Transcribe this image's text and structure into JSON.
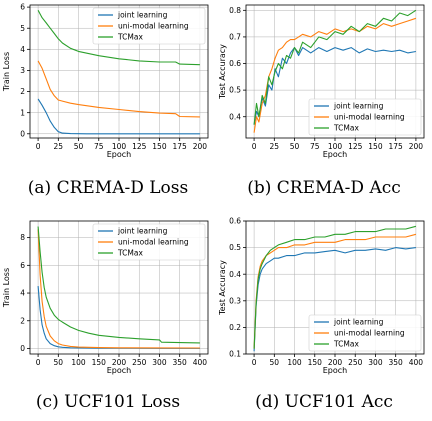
{
  "captions": [
    "(a) CREMA-D Loss",
    "(b) CREMA-D Acc",
    "(c) UCF101 Loss",
    "(d) UCF101 Acc"
  ],
  "colors": {
    "joint": "#1f77b4",
    "unimodal": "#ff7f0e",
    "tcmax": "#2ca02c"
  },
  "chart_data": [
    {
      "type": "line",
      "xlabel": "Epoch",
      "ylabel": "Train Loss",
      "xlim": [
        -10,
        210
      ],
      "ylim": [
        -0.2,
        6.1
      ],
      "xticks": [
        0,
        25,
        50,
        75,
        100,
        125,
        150,
        175,
        200
      ],
      "yticks": [
        0,
        1,
        2,
        3,
        4,
        5,
        6
      ],
      "grid": true,
      "legend_position": "top-right",
      "series": [
        {
          "name": "joint learning",
          "x": [
            0,
            5,
            10,
            15,
            20,
            25,
            30,
            40,
            60,
            100,
            150,
            200
          ],
          "values": [
            1.65,
            1.35,
            1.0,
            0.6,
            0.3,
            0.1,
            0.03,
            0.01,
            0.0,
            0.0,
            0.0,
            0.0
          ]
        },
        {
          "name": "uni-modal learning",
          "x": [
            0,
            5,
            10,
            15,
            20,
            25,
            30,
            40,
            50,
            75,
            100,
            125,
            150,
            170,
            175,
            200
          ],
          "values": [
            3.45,
            3.1,
            2.6,
            2.1,
            1.8,
            1.6,
            1.55,
            1.45,
            1.38,
            1.25,
            1.15,
            1.05,
            0.98,
            0.95,
            0.82,
            0.8
          ]
        },
        {
          "name": "TCMax",
          "x": [
            0,
            5,
            10,
            15,
            20,
            25,
            30,
            40,
            50,
            75,
            100,
            125,
            150,
            170,
            175,
            200
          ],
          "values": [
            5.85,
            5.5,
            5.25,
            5.0,
            4.75,
            4.5,
            4.3,
            4.05,
            3.9,
            3.7,
            3.55,
            3.45,
            3.4,
            3.4,
            3.3,
            3.27
          ]
        }
      ]
    },
    {
      "type": "line",
      "xlabel": "Epoch",
      "ylabel": "Test Accuracy",
      "xlim": [
        -10,
        210
      ],
      "ylim": [
        0.32,
        0.82
      ],
      "xticks": [
        0,
        25,
        50,
        75,
        100,
        125,
        150,
        175,
        200
      ],
      "yticks": [
        0.4,
        0.5,
        0.6,
        0.7,
        0.8
      ],
      "grid": true,
      "legend_position": "bottom-right",
      "series": [
        {
          "name": "joint learning",
          "x": [
            0,
            3,
            6,
            10,
            14,
            18,
            22,
            26,
            30,
            35,
            40,
            45,
            50,
            55,
            60,
            70,
            80,
            90,
            100,
            110,
            120,
            130,
            140,
            150,
            160,
            170,
            180,
            190,
            200
          ],
          "values": [
            0.37,
            0.42,
            0.4,
            0.47,
            0.44,
            0.52,
            0.5,
            0.58,
            0.55,
            0.62,
            0.6,
            0.64,
            0.66,
            0.63,
            0.66,
            0.64,
            0.66,
            0.645,
            0.66,
            0.65,
            0.66,
            0.64,
            0.655,
            0.645,
            0.65,
            0.645,
            0.65,
            0.64,
            0.645
          ]
        },
        {
          "name": "uni-modal learning",
          "x": [
            0,
            3,
            6,
            10,
            14,
            18,
            22,
            26,
            30,
            35,
            40,
            45,
            50,
            55,
            60,
            70,
            80,
            90,
            100,
            110,
            120,
            130,
            140,
            150,
            160,
            170,
            180,
            190,
            200
          ],
          "values": [
            0.34,
            0.4,
            0.38,
            0.45,
            0.48,
            0.55,
            0.58,
            0.62,
            0.65,
            0.66,
            0.68,
            0.69,
            0.69,
            0.7,
            0.71,
            0.7,
            0.72,
            0.71,
            0.73,
            0.72,
            0.73,
            0.72,
            0.74,
            0.73,
            0.75,
            0.74,
            0.75,
            0.76,
            0.77
          ]
        },
        {
          "name": "TCMax",
          "x": [
            0,
            3,
            6,
            10,
            14,
            18,
            22,
            26,
            30,
            35,
            40,
            45,
            50,
            55,
            60,
            70,
            80,
            90,
            100,
            110,
            120,
            130,
            140,
            150,
            160,
            170,
            180,
            190,
            200
          ],
          "values": [
            0.37,
            0.45,
            0.4,
            0.48,
            0.45,
            0.55,
            0.52,
            0.57,
            0.6,
            0.58,
            0.63,
            0.62,
            0.66,
            0.64,
            0.68,
            0.66,
            0.7,
            0.69,
            0.72,
            0.71,
            0.74,
            0.72,
            0.75,
            0.74,
            0.77,
            0.76,
            0.79,
            0.78,
            0.8
          ]
        }
      ]
    },
    {
      "type": "line",
      "xlabel": "Epoch",
      "ylabel": "Train Loss",
      "xlim": [
        -20,
        420
      ],
      "ylim": [
        -0.4,
        9.2
      ],
      "xticks": [
        0,
        50,
        100,
        150,
        200,
        250,
        300,
        350,
        400
      ],
      "yticks": [
        0,
        2,
        4,
        6,
        8
      ],
      "grid": true,
      "legend_position": "top-right",
      "series": [
        {
          "name": "joint learning",
          "x": [
            0,
            5,
            10,
            15,
            20,
            30,
            40,
            50,
            60,
            80,
            100,
            150,
            200,
            300,
            400
          ],
          "values": [
            4.5,
            2.8,
            1.7,
            1.1,
            0.7,
            0.35,
            0.2,
            0.12,
            0.08,
            0.05,
            0.03,
            0.02,
            0.02,
            0.01,
            0.01
          ]
        },
        {
          "name": "uni-modal learning",
          "x": [
            0,
            5,
            10,
            15,
            20,
            30,
            40,
            50,
            60,
            80,
            100,
            150,
            200,
            300,
            400
          ],
          "values": [
            8.6,
            5.3,
            3.4,
            2.3,
            1.6,
            0.9,
            0.55,
            0.35,
            0.25,
            0.15,
            0.1,
            0.06,
            0.05,
            0.04,
            0.03
          ]
        },
        {
          "name": "TCMax",
          "x": [
            0,
            5,
            10,
            15,
            20,
            30,
            40,
            50,
            60,
            80,
            100,
            125,
            150,
            200,
            250,
            300,
            305,
            350,
            400
          ],
          "values": [
            8.8,
            7.0,
            5.5,
            4.4,
            3.7,
            2.9,
            2.4,
            2.1,
            1.9,
            1.55,
            1.3,
            1.1,
            0.95,
            0.8,
            0.7,
            0.62,
            0.45,
            0.42,
            0.4
          ]
        }
      ]
    },
    {
      "type": "line",
      "xlabel": "Epoch",
      "ylabel": "Test Accuracy",
      "xlim": [
        -20,
        420
      ],
      "ylim": [
        0.1,
        0.6
      ],
      "xticks": [
        0,
        50,
        100,
        150,
        200,
        250,
        300,
        350,
        400
      ],
      "yticks": [
        0.1,
        0.2,
        0.3,
        0.4,
        0.5,
        0.6
      ],
      "grid": true,
      "legend_position": "bottom-right",
      "series": [
        {
          "name": "joint learning",
          "x": [
            0,
            5,
            10,
            15,
            20,
            30,
            40,
            50,
            60,
            80,
            100,
            125,
            150,
            175,
            200,
            225,
            250,
            275,
            300,
            325,
            350,
            375,
            400
          ],
          "values": [
            0.11,
            0.28,
            0.36,
            0.4,
            0.42,
            0.44,
            0.45,
            0.46,
            0.46,
            0.47,
            0.47,
            0.48,
            0.48,
            0.485,
            0.49,
            0.48,
            0.49,
            0.49,
            0.495,
            0.49,
            0.5,
            0.495,
            0.5
          ]
        },
        {
          "name": "uni-modal learning",
          "x": [
            0,
            5,
            10,
            15,
            20,
            30,
            40,
            50,
            60,
            80,
            100,
            125,
            150,
            175,
            200,
            225,
            250,
            275,
            300,
            325,
            350,
            375,
            400
          ],
          "values": [
            0.12,
            0.3,
            0.39,
            0.43,
            0.45,
            0.47,
            0.48,
            0.49,
            0.5,
            0.5,
            0.51,
            0.51,
            0.52,
            0.52,
            0.52,
            0.53,
            0.53,
            0.53,
            0.54,
            0.54,
            0.54,
            0.54,
            0.55
          ]
        },
        {
          "name": "TCMax",
          "x": [
            0,
            5,
            10,
            15,
            20,
            30,
            40,
            50,
            60,
            80,
            100,
            125,
            150,
            175,
            200,
            225,
            250,
            275,
            300,
            325,
            350,
            375,
            400
          ],
          "values": [
            0.12,
            0.29,
            0.38,
            0.42,
            0.44,
            0.47,
            0.49,
            0.5,
            0.51,
            0.52,
            0.53,
            0.53,
            0.54,
            0.54,
            0.55,
            0.55,
            0.56,
            0.56,
            0.56,
            0.57,
            0.57,
            0.57,
            0.58
          ]
        }
      ]
    }
  ]
}
